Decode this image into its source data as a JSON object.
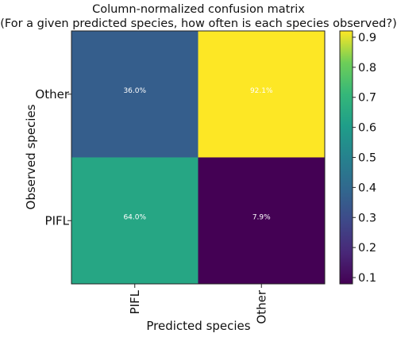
{
  "chart_data": {
    "type": "heatmap",
    "title": "Column-normalized confusion matrix",
    "subtitle": "(For a given predicted species, how often is each species observed?)",
    "xlabel": "Predicted species",
    "ylabel": "Observed species",
    "x_categories": [
      "PIFL",
      "Other"
    ],
    "y_categories": [
      "Other",
      "PIFL"
    ],
    "values": [
      [
        0.36,
        0.921
      ],
      [
        0.64,
        0.079
      ]
    ],
    "cell_labels": [
      [
        "36.0%",
        "92.1%"
      ],
      [
        "64.0%",
        "7.9%"
      ]
    ],
    "colormap": "viridis",
    "clim": [
      0.079,
      0.921
    ],
    "colorbar_ticks": [
      "0.1",
      "0.2",
      "0.3",
      "0.4",
      "0.5",
      "0.6",
      "0.7",
      "0.8",
      "0.9"
    ]
  }
}
